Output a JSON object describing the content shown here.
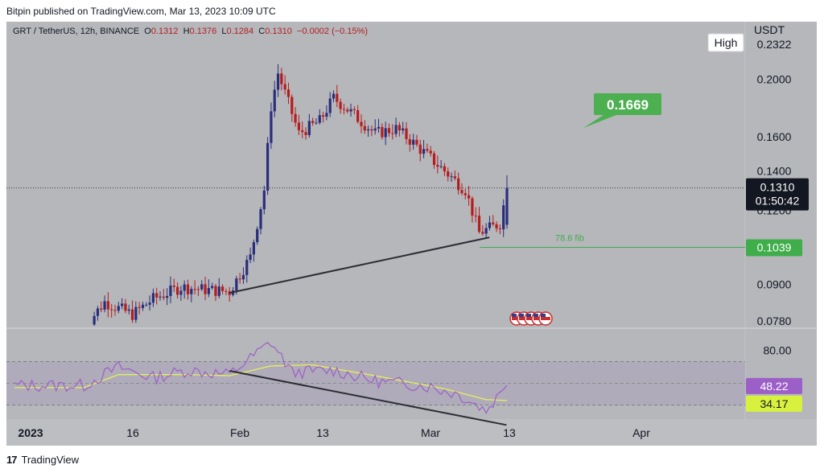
{
  "publisher_line": "Bitpin published on TradingView.com, Mar 13, 2023 10:09 UTC",
  "footer_brand": "TradingView",
  "legend": {
    "symbol": "GRT / TetherUS, 12h, BINANCE",
    "o_label": "O",
    "o_value": "0.1312",
    "h_label": "H",
    "h_value": "0.1376",
    "l_label": "L",
    "l_value": "0.1284",
    "c_label": "C",
    "c_value": "0.1310",
    "change": "−0.0002 (−0.15%)"
  },
  "y_unit": "USDT",
  "high_tag": "High",
  "high_value": "0.2322",
  "price_axis_ticks": [
    "0.2000",
    "0.1600",
    "0.1400",
    "0.1200",
    "0.0900",
    "0.0780"
  ],
  "current_price": {
    "value": "0.1310",
    "countdown": "01:50:42"
  },
  "target_label": "0.1669",
  "fib": {
    "label": "78.6 fib",
    "value": "0.1039"
  },
  "rsi": {
    "level_label": "80.00",
    "rsi_value": "48.22",
    "ma_value": "34.17"
  },
  "time_axis": [
    "2023",
    "16",
    "Feb",
    "13",
    "Mar",
    "13",
    "Apr"
  ],
  "colors": {
    "up": "#2a2e7a",
    "down": "#b71c1c",
    "fib": "#3fae4a",
    "target": "#4caf50",
    "rsi": "#9c5fc8",
    "rsi_ma": "#e6f05a",
    "ma_box": "#d8f13f"
  },
  "chart_data": {
    "type": "candlestick",
    "symbol": "GRT / TetherUS",
    "interval": "12h",
    "y_scale": "log",
    "last_candle": {
      "open": 0.1312,
      "high": 0.1376,
      "low": 0.1284,
      "close": 0.131
    },
    "anchors": [
      {
        "date": "2023-01-11",
        "close": 0.076
      },
      {
        "date": "2023-01-14",
        "close": 0.084
      },
      {
        "date": "2023-01-18",
        "close": 0.08
      },
      {
        "date": "2023-01-21",
        "close": 0.085
      },
      {
        "date": "2023-01-25",
        "close": 0.089
      },
      {
        "date": "2023-01-29",
        "close": 0.088
      },
      {
        "date": "2023-02-01",
        "close": 0.0875
      },
      {
        "date": "2023-02-04",
        "close": 0.1
      },
      {
        "date": "2023-02-06",
        "close": 0.13
      },
      {
        "date": "2023-02-07",
        "close": 0.18
      },
      {
        "date": "2023-02-08",
        "close": 0.205
      },
      {
        "date": "2023-02-11",
        "close": 0.162
      },
      {
        "date": "2023-02-14",
        "close": 0.17
      },
      {
        "date": "2023-02-16",
        "close": 0.186
      },
      {
        "date": "2023-02-18",
        "close": 0.178
      },
      {
        "date": "2023-02-22",
        "close": 0.162
      },
      {
        "date": "2023-02-25",
        "close": 0.165
      },
      {
        "date": "2023-02-27",
        "close": 0.158
      },
      {
        "date": "2023-03-04",
        "close": 0.14
      },
      {
        "date": "2023-03-07",
        "close": 0.13
      },
      {
        "date": "2023-03-09",
        "close": 0.11
      },
      {
        "date": "2023-03-12",
        "close": 0.114
      },
      {
        "date": "2023-03-13",
        "close": 0.131
      }
    ],
    "support_line": [
      {
        "date": "2023-02-01",
        "price": 0.087
      },
      {
        "date": "2023-03-10",
        "price": 0.107
      }
    ],
    "rsi_trendline": [
      {
        "date": "2023-02-01",
        "rsi": 60
      },
      {
        "date": "2023-03-12",
        "rsi": 22
      }
    ],
    "rsi_anchors": [
      {
        "date": "2023-01-11",
        "rsi": 48
      },
      {
        "date": "2023-01-16",
        "rsi": 65
      },
      {
        "date": "2023-01-21",
        "rsi": 55
      },
      {
        "date": "2023-01-26",
        "rsi": 62
      },
      {
        "date": "2023-02-01",
        "rsi": 58
      },
      {
        "date": "2023-02-07",
        "rsi": 88
      },
      {
        "date": "2023-02-10",
        "rsi": 60
      },
      {
        "date": "2023-02-16",
        "rsi": 62
      },
      {
        "date": "2023-02-22",
        "rsi": 52
      },
      {
        "date": "2023-03-01",
        "rsi": 48
      },
      {
        "date": "2023-03-06",
        "rsi": 40
      },
      {
        "date": "2023-03-10",
        "rsi": 25
      },
      {
        "date": "2023-03-13",
        "rsi": 48.22
      }
    ],
    "rsi_ma_anchors": [
      {
        "date": "2023-01-11",
        "rsi_ma": 46
      },
      {
        "date": "2023-01-16",
        "rsi_ma": 58
      },
      {
        "date": "2023-01-26",
        "rsi_ma": 58
      },
      {
        "date": "2023-02-01",
        "rsi_ma": 57
      },
      {
        "date": "2023-02-07",
        "rsi_ma": 66
      },
      {
        "date": "2023-02-13",
        "rsi_ma": 67
      },
      {
        "date": "2023-02-22",
        "rsi_ma": 57
      },
      {
        "date": "2023-03-04",
        "rsi_ma": 45
      },
      {
        "date": "2023-03-10",
        "rsi_ma": 35
      },
      {
        "date": "2023-03-13",
        "rsi_ma": 34.17
      }
    ]
  }
}
